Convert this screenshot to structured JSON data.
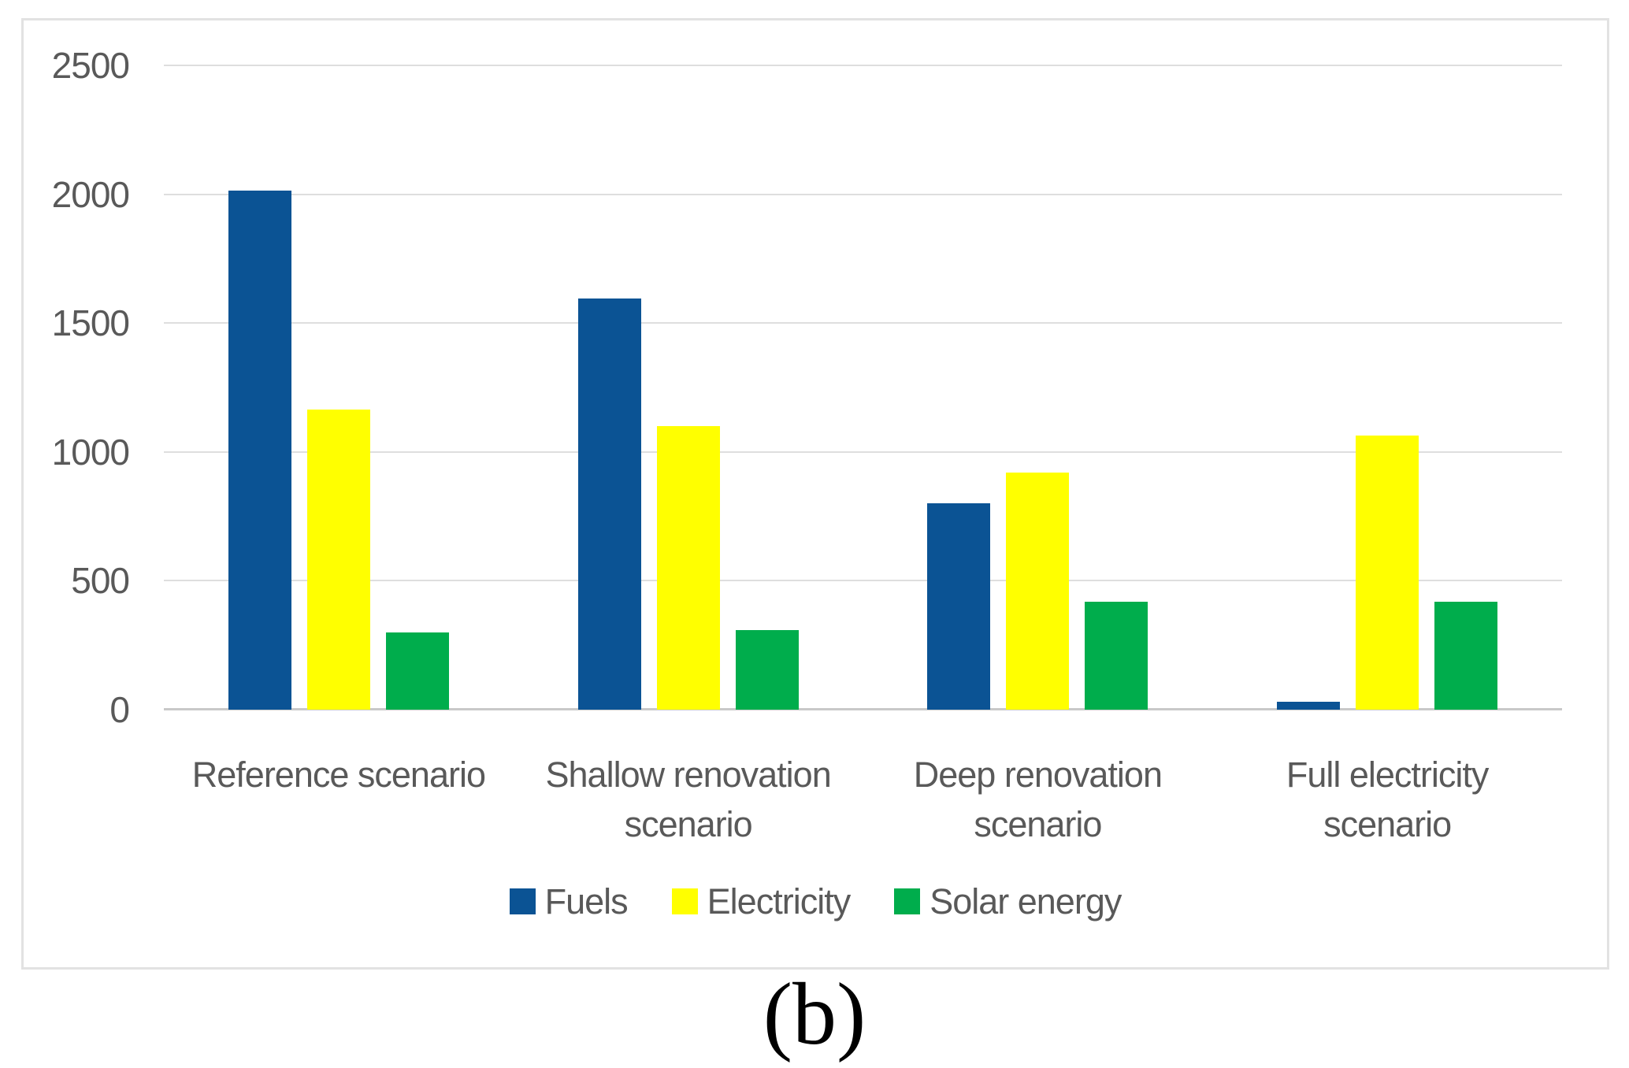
{
  "figure": {
    "panel_label": "(b)"
  },
  "colors": {
    "fuels": "#0B5394",
    "electricity": "#FFFF00",
    "solar": "#00AD4C",
    "gridline": "#DEDEDE",
    "axis_line": "#C9C9C9",
    "text": "#595959",
    "border": "#E2E2E2"
  },
  "chart_data": {
    "type": "bar",
    "categories": [
      "Reference scenario",
      "Shallow renovation scenario",
      "Deep renovation scenario",
      "Full electricity scenario"
    ],
    "series": [
      {
        "name": "Fuels",
        "color_key": "fuels",
        "values": [
          2015,
          1595,
          800,
          30
        ]
      },
      {
        "name": "Electricity",
        "color_key": "electricity",
        "values": [
          1165,
          1100,
          920,
          1065
        ]
      },
      {
        "name": "Solar energy",
        "color_key": "solar",
        "values": [
          300,
          310,
          420,
          420
        ]
      }
    ],
    "title": "",
    "xlabel": "",
    "ylabel": "",
    "ylim": [
      0,
      2500
    ],
    "yticks": [
      "0",
      "500",
      "1000",
      "1500",
      "2000",
      "2500"
    ],
    "grid": true,
    "legend_position": "bottom-center"
  }
}
